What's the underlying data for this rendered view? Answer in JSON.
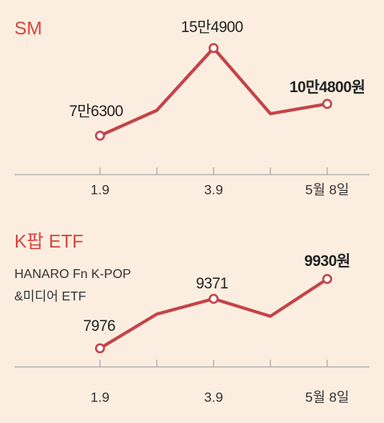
{
  "chart_data": [
    {
      "type": "line",
      "title": "SM",
      "categories": [
        "1.9",
        null,
        "3.9",
        null,
        "5월 8일"
      ],
      "values": [
        76300,
        99000,
        154900,
        96000,
        104800
      ],
      "value_labels": [
        "7만6300",
        null,
        "15만4900",
        null,
        "10만4800원"
      ],
      "color": "#c4434a",
      "ylim": [
        60000,
        170000
      ]
    },
    {
      "type": "line",
      "title": "K팝 ETF",
      "subtitle": [
        "HANARO Fn K-POP",
        "&미디어 ETF"
      ],
      "categories": [
        "1.9",
        null,
        "3.9",
        null,
        "5월 8일"
      ],
      "values": [
        7976,
        8940,
        9371,
        8880,
        9930
      ],
      "value_labels": [
        "7976",
        null,
        "9371",
        null,
        "9930원"
      ],
      "color": "#c4434a",
      "ylim": [
        7000,
        10500
      ]
    }
  ]
}
